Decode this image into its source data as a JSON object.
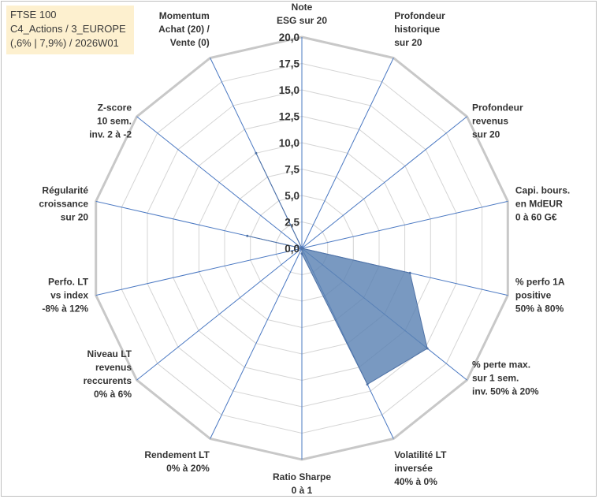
{
  "title_box": {
    "line1": "FTSE 100",
    "line2": "C4_Actions / 3_EUROPE",
    "line3": "(,6% | 7,9%) / 2026W01"
  },
  "chart_data": {
    "type": "radar",
    "title": "FTSE 100 — C4_Actions / 3_EUROPE (,6% | 7,9%) / 2026W01",
    "r_range": [
      0,
      20
    ],
    "r_ticks": [
      "0,0",
      "2,5",
      "5,0",
      "7,5",
      "10,0",
      "12,5",
      "15,0",
      "17,5",
      "20,0"
    ],
    "grid": true,
    "fill_color": "#5b82b3",
    "axes": [
      {
        "label": "Note\nESG sur 20"
      },
      {
        "label": "Profondeur\nhistorique\nsur 20"
      },
      {
        "label": "Profondeur\nrevenus\nsur 20"
      },
      {
        "label": "Capi. bours.\nen MdEUR\n0 à 60 G€"
      },
      {
        "label": "% perfo 1A\npositive\n50% à 80%"
      },
      {
        "label": "% perte max.\nsur 1 sem.\ninv. 50% à 20%"
      },
      {
        "label": "Volatilité LT\ninversée\n40% à 0%"
      },
      {
        "label": "Ratio Sharpe\n0 à 1"
      },
      {
        "label": "Rendement LT\n0% à 20%"
      },
      {
        "label": "Niveau LT\nrevenus\nreccurents\n0% à 6%"
      },
      {
        "label": "Perfo. LT\nvs index\n-8% à 12%"
      },
      {
        "label": "Régularité\ncroissance\nsur 20"
      },
      {
        "label": "Z-score\n10 sem.\ninv. 2 à -2"
      },
      {
        "label": "Momentum\nAchat (20) /\nVente (0)"
      }
    ],
    "series": [
      {
        "name": "FTSE 100",
        "values": [
          0,
          0,
          0,
          0,
          10.5,
          15.2,
          14.3,
          0.5,
          0,
          0,
          0,
          5.3,
          0,
          10.0
        ]
      }
    ]
  }
}
